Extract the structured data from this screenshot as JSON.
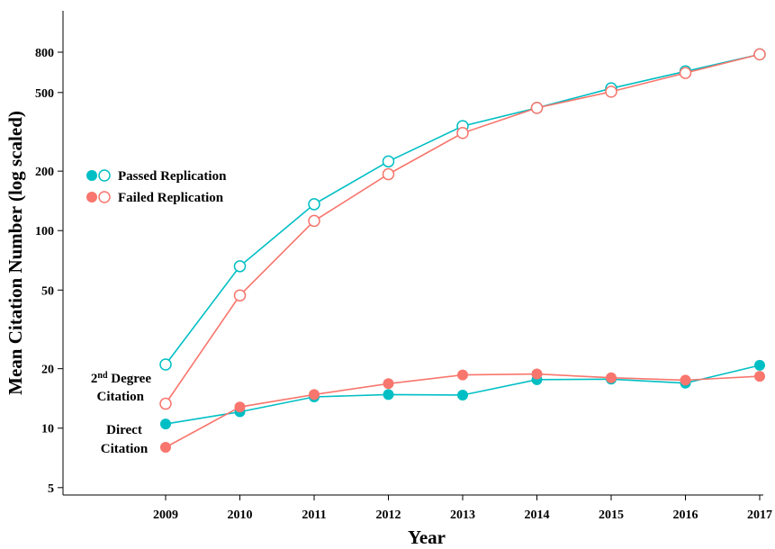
{
  "chart_data": {
    "type": "line",
    "title": "",
    "xlabel": "Year",
    "ylabel": "Mean Citation Number (log scaled)",
    "y_scale": "log",
    "ylim": [
      4.5,
      1300
    ],
    "x": [
      2009,
      2010,
      2011,
      2012,
      2013,
      2014,
      2015,
      2016,
      2017
    ],
    "x_tick_labels": [
      "2009",
      "2010",
      "2011",
      "2012",
      "2013",
      "2014",
      "2015",
      "2016",
      "2017"
    ],
    "y_ticks": [
      5,
      10,
      20,
      50,
      100,
      200,
      500,
      800
    ],
    "y_tick_labels": [
      "5",
      "10",
      "20",
      "50",
      "100",
      "200",
      "500",
      "800"
    ],
    "grid": false,
    "legend_position": "left",
    "legend": [
      {
        "label": "Passed Replication",
        "color": "#00BFC4"
      },
      {
        "label": "Failed Replication",
        "color": "#F8766D"
      }
    ],
    "series": [
      {
        "group": "Passed Replication",
        "kind": "2nd Degree Citation",
        "marker": "hollow",
        "color": "#00BFC4",
        "values": [
          21,
          66,
          136,
          224,
          338,
          418,
          525,
          640,
          780
        ]
      },
      {
        "group": "Failed Replication",
        "kind": "2nd Degree Citation",
        "marker": "hollow",
        "color": "#F8766D",
        "values": [
          13.3,
          47,
          112,
          193,
          312,
          418,
          505,
          628,
          780
        ]
      },
      {
        "group": "Passed Replication",
        "kind": "Direct Citation",
        "marker": "filled",
        "color": "#00BFC4",
        "values": [
          10.5,
          12.1,
          14.4,
          14.8,
          14.7,
          17.6,
          17.7,
          16.9,
          20.8
        ]
      },
      {
        "group": "Failed Replication",
        "kind": "Direct Citation",
        "marker": "filled",
        "color": "#F8766D",
        "values": [
          8.0,
          12.8,
          14.8,
          16.8,
          18.6,
          18.8,
          18.0,
          17.5,
          18.3
        ]
      }
    ],
    "annotations": {
      "second_degree_prefix": "2",
      "second_degree_sup": "nd",
      "second_degree_rest": " Degree",
      "second_degree_line2": "Citation",
      "direct_line1": "Direct",
      "direct_line2": "Citation"
    }
  }
}
